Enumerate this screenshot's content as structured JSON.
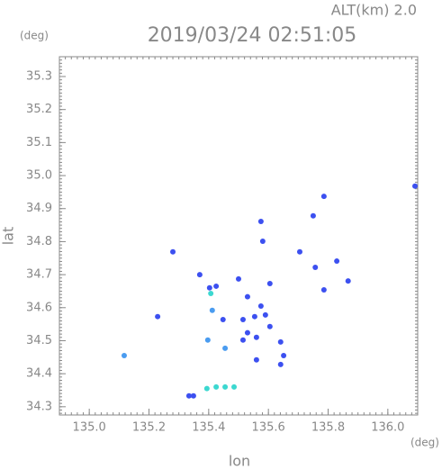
{
  "chart_data": {
    "type": "scatter",
    "subtitle": "ALT(km) 2.0",
    "title": "2019/03/24 02:51:05",
    "y_unit": "(deg)",
    "x_unit": "(deg)",
    "xlabel": "lon",
    "ylabel": "lat",
    "xlim": [
      134.9,
      136.1
    ],
    "ylim": [
      34.275,
      35.36
    ],
    "xticks": [
      {
        "value": 135.0,
        "label": "135.0"
      },
      135.2,
      135.4,
      135.6,
      135.8,
      {
        "value": 136.0,
        "label": "136.0"
      }
    ],
    "yticks": [
      34.3,
      34.4,
      34.5,
      34.6,
      34.7,
      34.8,
      34.9,
      {
        "value": 35.0,
        "label": "35.0"
      },
      35.1,
      35.2,
      35.3
    ],
    "series": [
      {
        "color": "#3c50f0",
        "x": [
          135.786,
          135.75,
          135.575,
          135.581,
          135.28,
          135.705,
          135.829,
          135.757,
          135.37,
          135.5,
          135.605,
          135.867,
          135.403,
          135.425,
          135.53,
          135.786,
          135.229,
          135.575,
          135.515,
          135.554,
          135.59,
          135.448,
          135.605,
          135.53,
          135.515,
          135.56,
          135.641,
          135.651,
          135.56,
          135.641,
          135.334,
          135.349,
          136.091
        ],
        "values": [
          34.937,
          34.878,
          34.861,
          34.801,
          34.769,
          34.769,
          34.741,
          34.722,
          34.7,
          34.687,
          34.673,
          34.681,
          34.66,
          34.665,
          34.633,
          34.654,
          34.573,
          34.605,
          34.564,
          34.573,
          34.578,
          34.564,
          34.543,
          34.524,
          34.502,
          34.51,
          34.496,
          34.455,
          34.442,
          34.428,
          34.333,
          34.333,
          34.968
        ]
      },
      {
        "color": "#4a9cf0",
        "x": [
          135.117,
          135.397,
          135.412,
          135.455
        ],
        "values": [
          34.455,
          34.502,
          34.592,
          34.477
        ]
      },
      {
        "color": "#3cd8d0",
        "x": [
          135.394,
          135.425,
          135.455,
          135.485,
          135.407
        ],
        "values": [
          34.355,
          34.36,
          34.36,
          34.36,
          34.643
        ]
      }
    ]
  }
}
